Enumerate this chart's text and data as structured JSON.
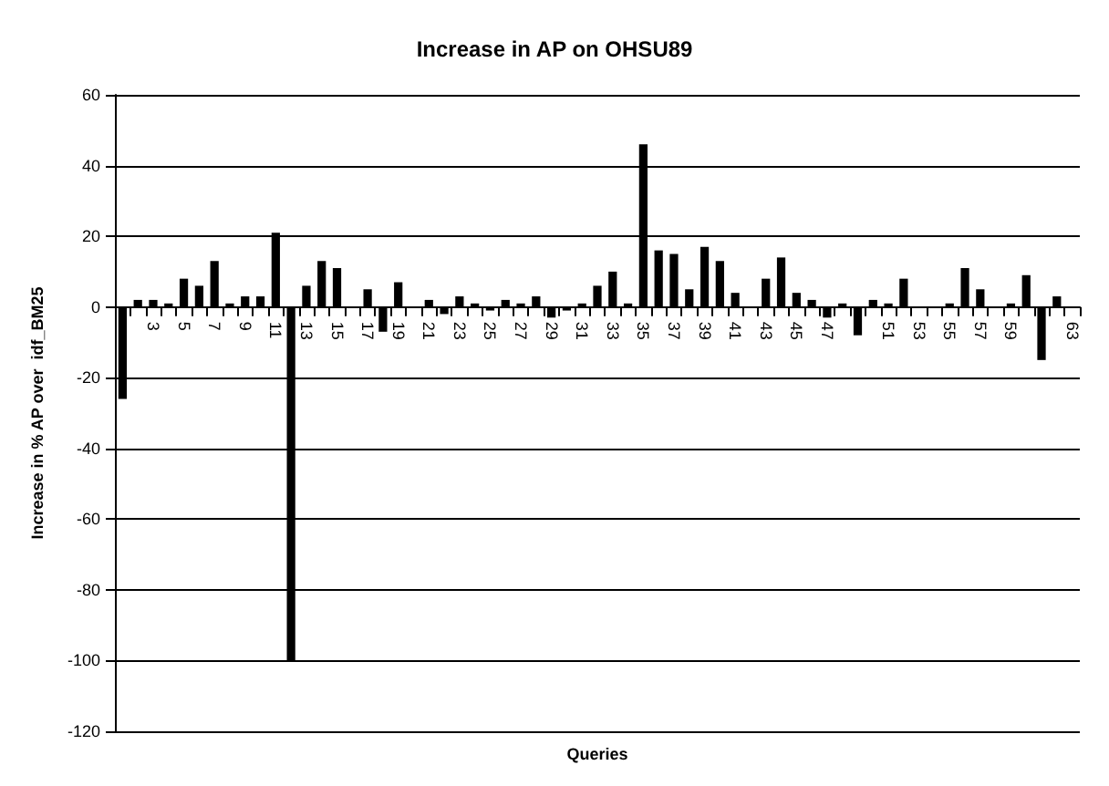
{
  "chart_data": {
    "type": "bar",
    "title": "Increase in AP on OHSU89",
    "xlabel": "Queries",
    "ylabel": "Increase in % AP over  idf_BM25",
    "categories": [
      null,
      null,
      "3",
      null,
      "5",
      null,
      "7",
      null,
      "9",
      null,
      "11",
      null,
      "13",
      null,
      "15",
      null,
      "17",
      null,
      "19",
      null,
      "21",
      null,
      "23",
      null,
      "25",
      null,
      "27",
      null,
      "29",
      null,
      "31",
      null,
      "33",
      null,
      "35",
      null,
      "37",
      null,
      "39",
      null,
      "41",
      null,
      "43",
      null,
      "45",
      null,
      "47",
      null,
      null,
      null,
      "51",
      null,
      "53",
      null,
      "55",
      null,
      "57",
      null,
      "59",
      null,
      null,
      null,
      "63"
    ],
    "values": [
      -26,
      2,
      2,
      1,
      8,
      6,
      13,
      1,
      3,
      3,
      21,
      -100,
      6,
      13,
      11,
      0,
      5,
      -7,
      7,
      0,
      2,
      -2,
      3,
      1,
      -1,
      2,
      1,
      3,
      -3,
      -1,
      1,
      6,
      10,
      1,
      46,
      16,
      15,
      5,
      17,
      13,
      4,
      0,
      8,
      14,
      4,
      2,
      -3,
      1,
      -8,
      2,
      1,
      8,
      0,
      0,
      1,
      11,
      5,
      0,
      1,
      9,
      -15,
      3,
      0
    ],
    "color": "#000000",
    "ylim": [
      -120,
      60
    ],
    "yticks": [
      -120,
      -100,
      -80,
      -60,
      -40,
      -20,
      0,
      20,
      40,
      60
    ],
    "grid": "y"
  }
}
